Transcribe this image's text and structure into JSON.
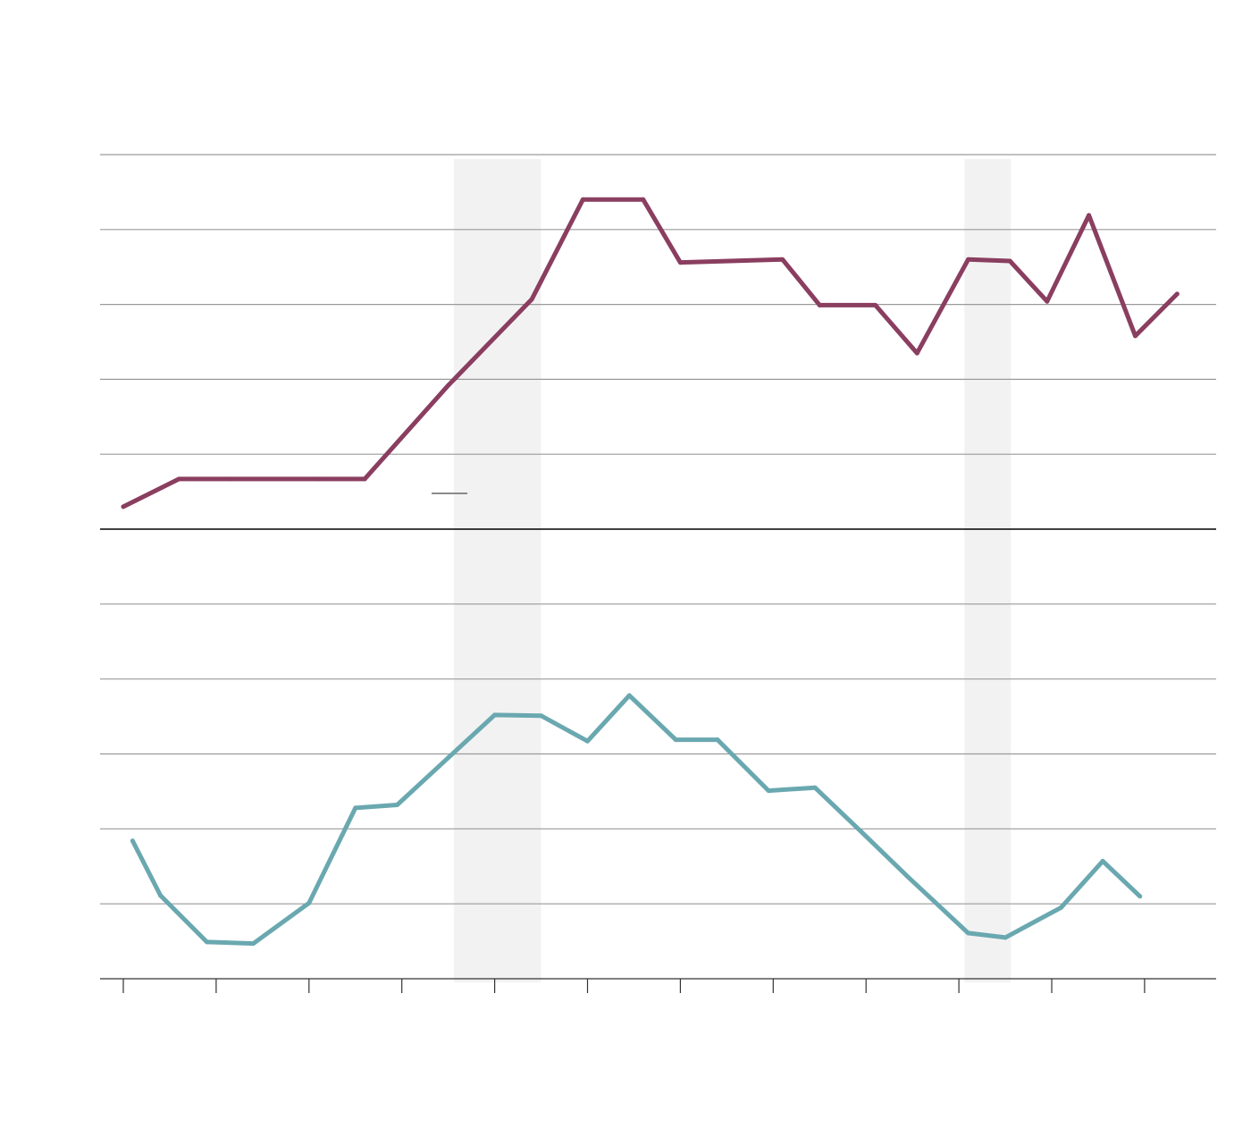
{
  "chart_data": {
    "type": "line",
    "title": "",
    "xlabel": "",
    "ylabel": "",
    "colors": {
      "top_series": "#8a3e60",
      "bottom_series": "#6aa8b0",
      "shade": "#f2f2f2"
    },
    "x_tick_count": 12,
    "shaded_regions": [
      {
        "x": [
          3.56,
          4.5
        ]
      },
      {
        "x": [
          9.06,
          9.56
        ]
      }
    ],
    "panels": [
      {
        "name": "",
        "ylim": [
          0,
          5
        ],
        "gridlines": [
          1,
          2,
          3,
          4,
          5
        ],
        "series": [
          {
            "name": "",
            "color": "#8a3e60",
            "x": [
              0.0,
              0.6,
              1.15,
              2.1,
              2.6,
              3.5,
              4.4,
              4.95,
              5.6,
              6.0,
              7.1,
              7.5,
              8.1,
              8.55,
              9.1,
              9.55,
              9.95,
              10.4,
              10.9,
              11.35
            ],
            "y": [
              0.3,
              0.67,
              0.67,
              0.67,
              0.67,
              1.92,
              3.07,
              4.4,
              4.4,
              3.56,
              3.6,
              2.99,
              2.99,
              2.35,
              3.6,
              3.58,
              3.04,
              4.19,
              2.58,
              3.14
            ]
          }
        ]
      },
      {
        "name": "",
        "ylim": [
          0,
          6
        ],
        "gridlines": [
          1,
          2,
          3,
          4,
          5,
          6
        ],
        "series": [
          {
            "name": "",
            "color": "#6aa8b0",
            "x": [
              0.1,
              0.4,
              0.9,
              1.4,
              2.0,
              2.5,
              2.95,
              3.5,
              4.0,
              4.5,
              5.0,
              5.45,
              5.95,
              6.4,
              6.95,
              7.45,
              7.95,
              8.45,
              9.1,
              9.5,
              10.1,
              10.55,
              10.95
            ],
            "y": [
              1.84,
              1.11,
              0.49,
              0.47,
              1.01,
              2.28,
              2.32,
              2.95,
              3.52,
              3.51,
              3.17,
              3.78,
              3.19,
              3.19,
              2.51,
              2.55,
              1.96,
              1.36,
              0.61,
              0.55,
              0.95,
              1.57,
              1.1
            ]
          }
        ]
      }
    ]
  }
}
